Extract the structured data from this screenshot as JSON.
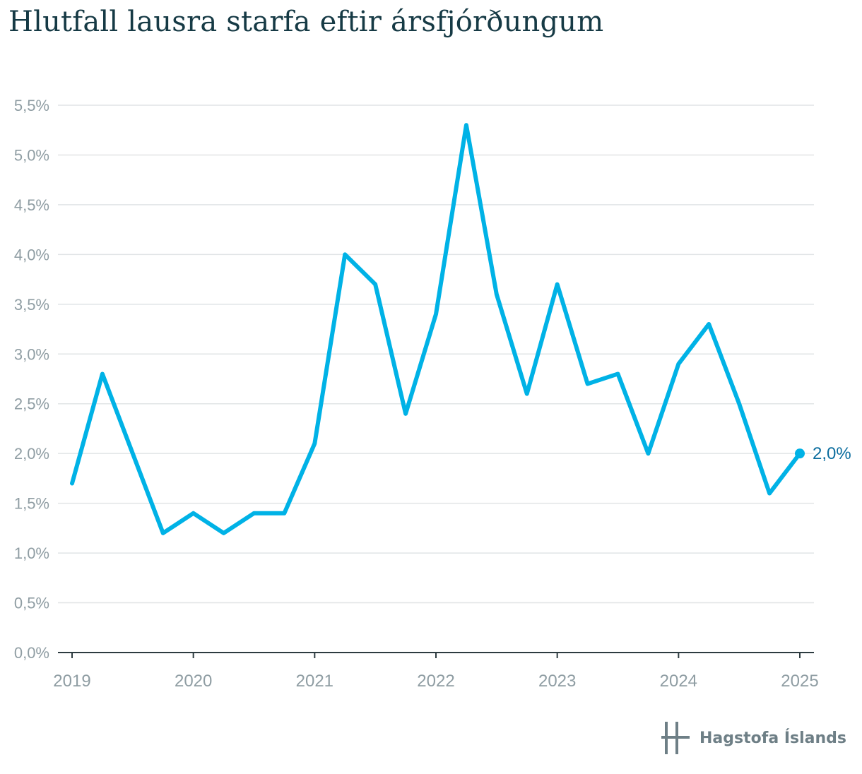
{
  "title": "Hlutfall lausra starfa eftir ársfjórðungum",
  "logo_text": "Hagstofa Íslands",
  "colors": {
    "line": "#00b2e6",
    "title": "#163a45",
    "axis": "#8f9da3",
    "label": "#0b6d9e"
  },
  "chart_data": {
    "type": "line",
    "xlabel": "",
    "ylabel": "",
    "x": [
      2019.0,
      2019.25,
      2019.5,
      2019.75,
      2020.0,
      2020.25,
      2020.5,
      2020.75,
      2021.0,
      2021.25,
      2021.5,
      2021.75,
      2022.0,
      2022.25,
      2022.5,
      2022.75,
      2023.0,
      2023.25,
      2023.5,
      2023.75,
      2024.0,
      2024.25,
      2024.5,
      2024.75,
      2025.0
    ],
    "series": [
      {
        "values": [
          1.7,
          2.8,
          2.0,
          1.2,
          1.4,
          1.2,
          1.4,
          1.4,
          2.1,
          4.0,
          3.7,
          2.4,
          3.4,
          5.3,
          3.6,
          2.6,
          3.7,
          2.7,
          2.8,
          2.0,
          2.9,
          3.3,
          2.5,
          1.6,
          2.0
        ]
      }
    ],
    "ylim": [
      0,
      5.5
    ],
    "xlim": [
      2019,
      2025
    ],
    "y_ticks": [
      "0,0%",
      "0,5%",
      "1,0%",
      "1,5%",
      "2,0%",
      "2,5%",
      "3,0%",
      "3,5%",
      "4,0%",
      "4,5%",
      "5,0%",
      "5,5%"
    ],
    "x_ticks": [
      "2019",
      "2020",
      "2021",
      "2022",
      "2023",
      "2024",
      "2025"
    ],
    "end_label": "2,0%",
    "grid": true
  }
}
